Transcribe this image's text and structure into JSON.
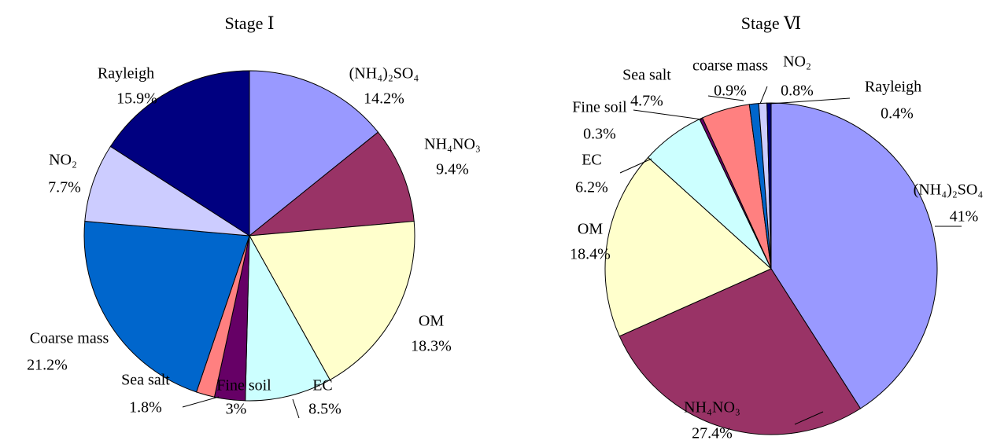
{
  "chart_data": [
    {
      "type": "pie",
      "title": "Stage Ⅰ",
      "categories": [
        "(NH₄)₂SO₄",
        "NH₄NO₃",
        "OM",
        "EC",
        "Fine soil",
        "Sea salt",
        "Coarse mass",
        "NO₂",
        "Rayleigh"
      ],
      "values": [
        14.2,
        9.4,
        18.3,
        8.5,
        3,
        1.8,
        21.2,
        7.7,
        15.9
      ],
      "value_labels": [
        "14.2%",
        "9.4%",
        "18.3%",
        "8.5%",
        "3%",
        "1.8%",
        "21.2%",
        "7.7%",
        "15.9%"
      ],
      "colors": [
        "#9999ff",
        "#993366",
        "#ffffcc",
        "#ccffff",
        "#660066",
        "#ff8080",
        "#0066cc",
        "#ccccff",
        "#000080"
      ]
    },
    {
      "type": "pie",
      "title": "Stage Ⅵ",
      "categories": [
        "(NH₄)₂SO₄",
        "NH₄NO₃",
        "OM",
        "EC",
        "Fine soil",
        "Sea salt",
        "coarse mass",
        "NO₂",
        "Rayleigh"
      ],
      "values": [
        41,
        27.4,
        18.4,
        6.2,
        0.3,
        4.7,
        0.9,
        0.8,
        0.4
      ],
      "value_labels": [
        "41%",
        "27.4%",
        "18.4%",
        "6.2%",
        "0.3%",
        "4.7%",
        "0.9%",
        "0.8%",
        "0.4%"
      ],
      "colors": [
        "#9999ff",
        "#993366",
        "#ffffcc",
        "#ccffff",
        "#660066",
        "#ff8080",
        "#0066cc",
        "#ccccff",
        "#000080"
      ]
    }
  ]
}
